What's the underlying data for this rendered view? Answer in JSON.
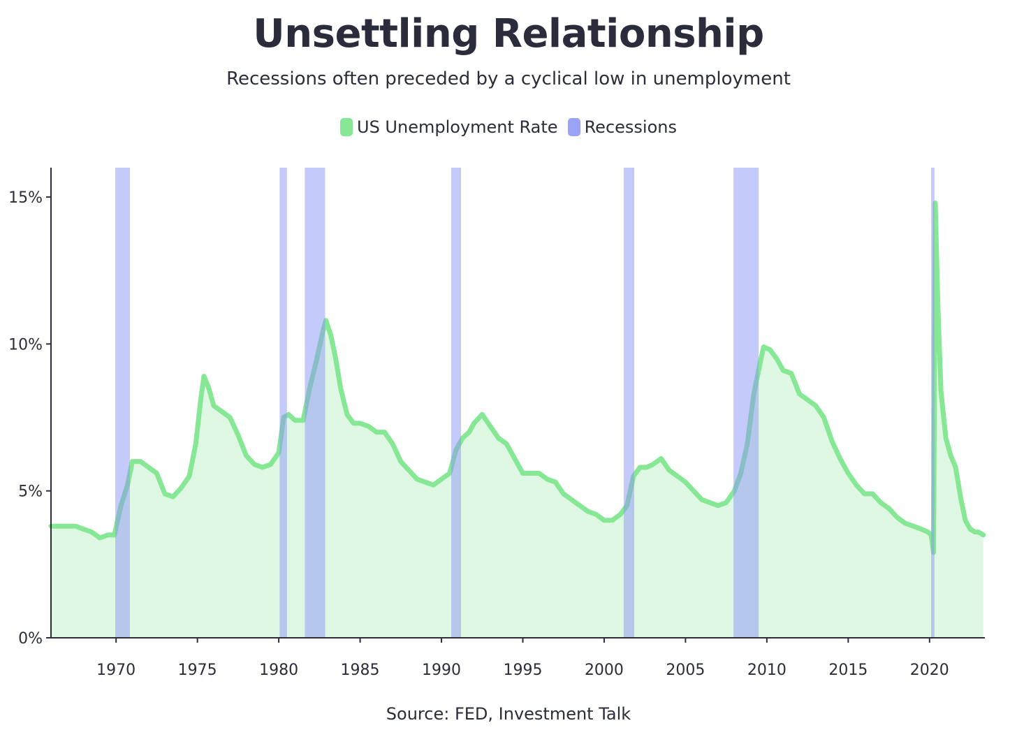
{
  "chart_data": {
    "type": "line",
    "title": "Unsettling Relationship",
    "subtitle": "Recessions often preceded by a cyclical low in unemployment",
    "source": "Source: FED, Investment Talk",
    "legend": [
      {
        "label": "US Unemployment Rate",
        "color": "#86e795"
      },
      {
        "label": "Recessions",
        "color": "#9aa3f7"
      }
    ],
    "legend_position": "top-center",
    "xlim": [
      1966.0,
      2023.4
    ],
    "ylim": [
      0,
      16
    ],
    "x_ticks": [
      1970,
      1975,
      1980,
      1985,
      1990,
      1995,
      2000,
      2005,
      2010,
      2015,
      2020
    ],
    "x_tick_labels": [
      "1970",
      "1975",
      "1980",
      "1985",
      "1990",
      "1995",
      "2000",
      "2005",
      "2010",
      "2015",
      "2020"
    ],
    "y_ticks": [
      0,
      5,
      10,
      15
    ],
    "y_tick_labels": [
      "0%",
      "5%",
      "10%",
      "15%"
    ],
    "grid": false,
    "recessions": [
      [
        1969.95,
        1970.85
      ],
      [
        1980.05,
        1980.5
      ],
      [
        1981.6,
        1982.85
      ],
      [
        1990.6,
        1991.2
      ],
      [
        2001.2,
        2001.85
      ],
      [
        2007.95,
        2009.5
      ],
      [
        2020.1,
        2020.3
      ]
    ],
    "series": [
      {
        "name": "US Unemployment Rate",
        "color": "#86e795",
        "fill": "#dff8e3",
        "x": [
          1966.0,
          1966.5,
          1967.0,
          1967.5,
          1968.0,
          1968.5,
          1969.0,
          1969.5,
          1969.9,
          1970.3,
          1970.7,
          1971.0,
          1971.5,
          1972.0,
          1972.5,
          1973.0,
          1973.5,
          1974.0,
          1974.5,
          1974.9,
          1975.2,
          1975.4,
          1975.7,
          1976.0,
          1976.5,
          1977.0,
          1977.5,
          1978.0,
          1978.5,
          1979.0,
          1979.5,
          1980.0,
          1980.3,
          1980.6,
          1981.0,
          1981.5,
          1981.9,
          1982.3,
          1982.7,
          1982.9,
          1983.2,
          1983.5,
          1983.8,
          1984.2,
          1984.6,
          1985.0,
          1985.5,
          1986.0,
          1986.5,
          1987.0,
          1987.5,
          1988.0,
          1988.5,
          1989.0,
          1989.5,
          1990.0,
          1990.5,
          1990.9,
          1991.3,
          1991.7,
          1992.0,
          1992.5,
          1993.0,
          1993.5,
          1994.0,
          1994.5,
          1995.0,
          1995.5,
          1996.0,
          1996.5,
          1997.0,
          1997.5,
          1998.0,
          1998.5,
          1999.0,
          1999.5,
          2000.0,
          2000.5,
          2001.0,
          2001.4,
          2001.8,
          2002.2,
          2002.6,
          2003.0,
          2003.5,
          2004.0,
          2004.5,
          2005.0,
          2005.5,
          2006.0,
          2006.5,
          2007.0,
          2007.5,
          2008.0,
          2008.4,
          2008.8,
          2009.2,
          2009.6,
          2009.8,
          2010.2,
          2010.6,
          2011.0,
          2011.5,
          2012.0,
          2012.5,
          2013.0,
          2013.5,
          2014.0,
          2014.5,
          2015.0,
          2015.5,
          2016.0,
          2016.5,
          2017.0,
          2017.5,
          2018.0,
          2018.5,
          2019.0,
          2019.5,
          2019.9,
          2020.1,
          2020.25,
          2020.35,
          2020.5,
          2020.7,
          2021.0,
          2021.3,
          2021.6,
          2021.9,
          2022.2,
          2022.5,
          2022.8,
          2023.0,
          2023.3
        ],
        "values": [
          3.8,
          3.8,
          3.8,
          3.8,
          3.7,
          3.6,
          3.4,
          3.5,
          3.5,
          4.5,
          5.2,
          6.0,
          6.0,
          5.8,
          5.6,
          4.9,
          4.8,
          5.1,
          5.5,
          6.6,
          8.1,
          8.9,
          8.5,
          7.9,
          7.7,
          7.5,
          6.9,
          6.2,
          5.9,
          5.8,
          5.9,
          6.3,
          7.5,
          7.6,
          7.4,
          7.4,
          8.5,
          9.4,
          10.4,
          10.8,
          10.3,
          9.5,
          8.5,
          7.6,
          7.3,
          7.3,
          7.2,
          7.0,
          7.0,
          6.6,
          6.0,
          5.7,
          5.4,
          5.3,
          5.2,
          5.4,
          5.6,
          6.4,
          6.8,
          7.0,
          7.3,
          7.6,
          7.2,
          6.8,
          6.6,
          6.1,
          5.6,
          5.6,
          5.6,
          5.4,
          5.3,
          4.9,
          4.7,
          4.5,
          4.3,
          4.2,
          4.0,
          4.0,
          4.2,
          4.5,
          5.5,
          5.8,
          5.8,
          5.9,
          6.1,
          5.7,
          5.5,
          5.3,
          5.0,
          4.7,
          4.6,
          4.5,
          4.6,
          5.0,
          5.6,
          6.6,
          8.3,
          9.4,
          9.9,
          9.8,
          9.5,
          9.1,
          9.0,
          8.3,
          8.1,
          7.9,
          7.5,
          6.7,
          6.1,
          5.6,
          5.2,
          4.9,
          4.9,
          4.6,
          4.4,
          4.1,
          3.9,
          3.8,
          3.7,
          3.6,
          3.5,
          2.9,
          14.8,
          11.5,
          8.4,
          6.8,
          6.2,
          5.8,
          4.8,
          4.0,
          3.7,
          3.6,
          3.6,
          3.5
        ]
      }
    ]
  }
}
